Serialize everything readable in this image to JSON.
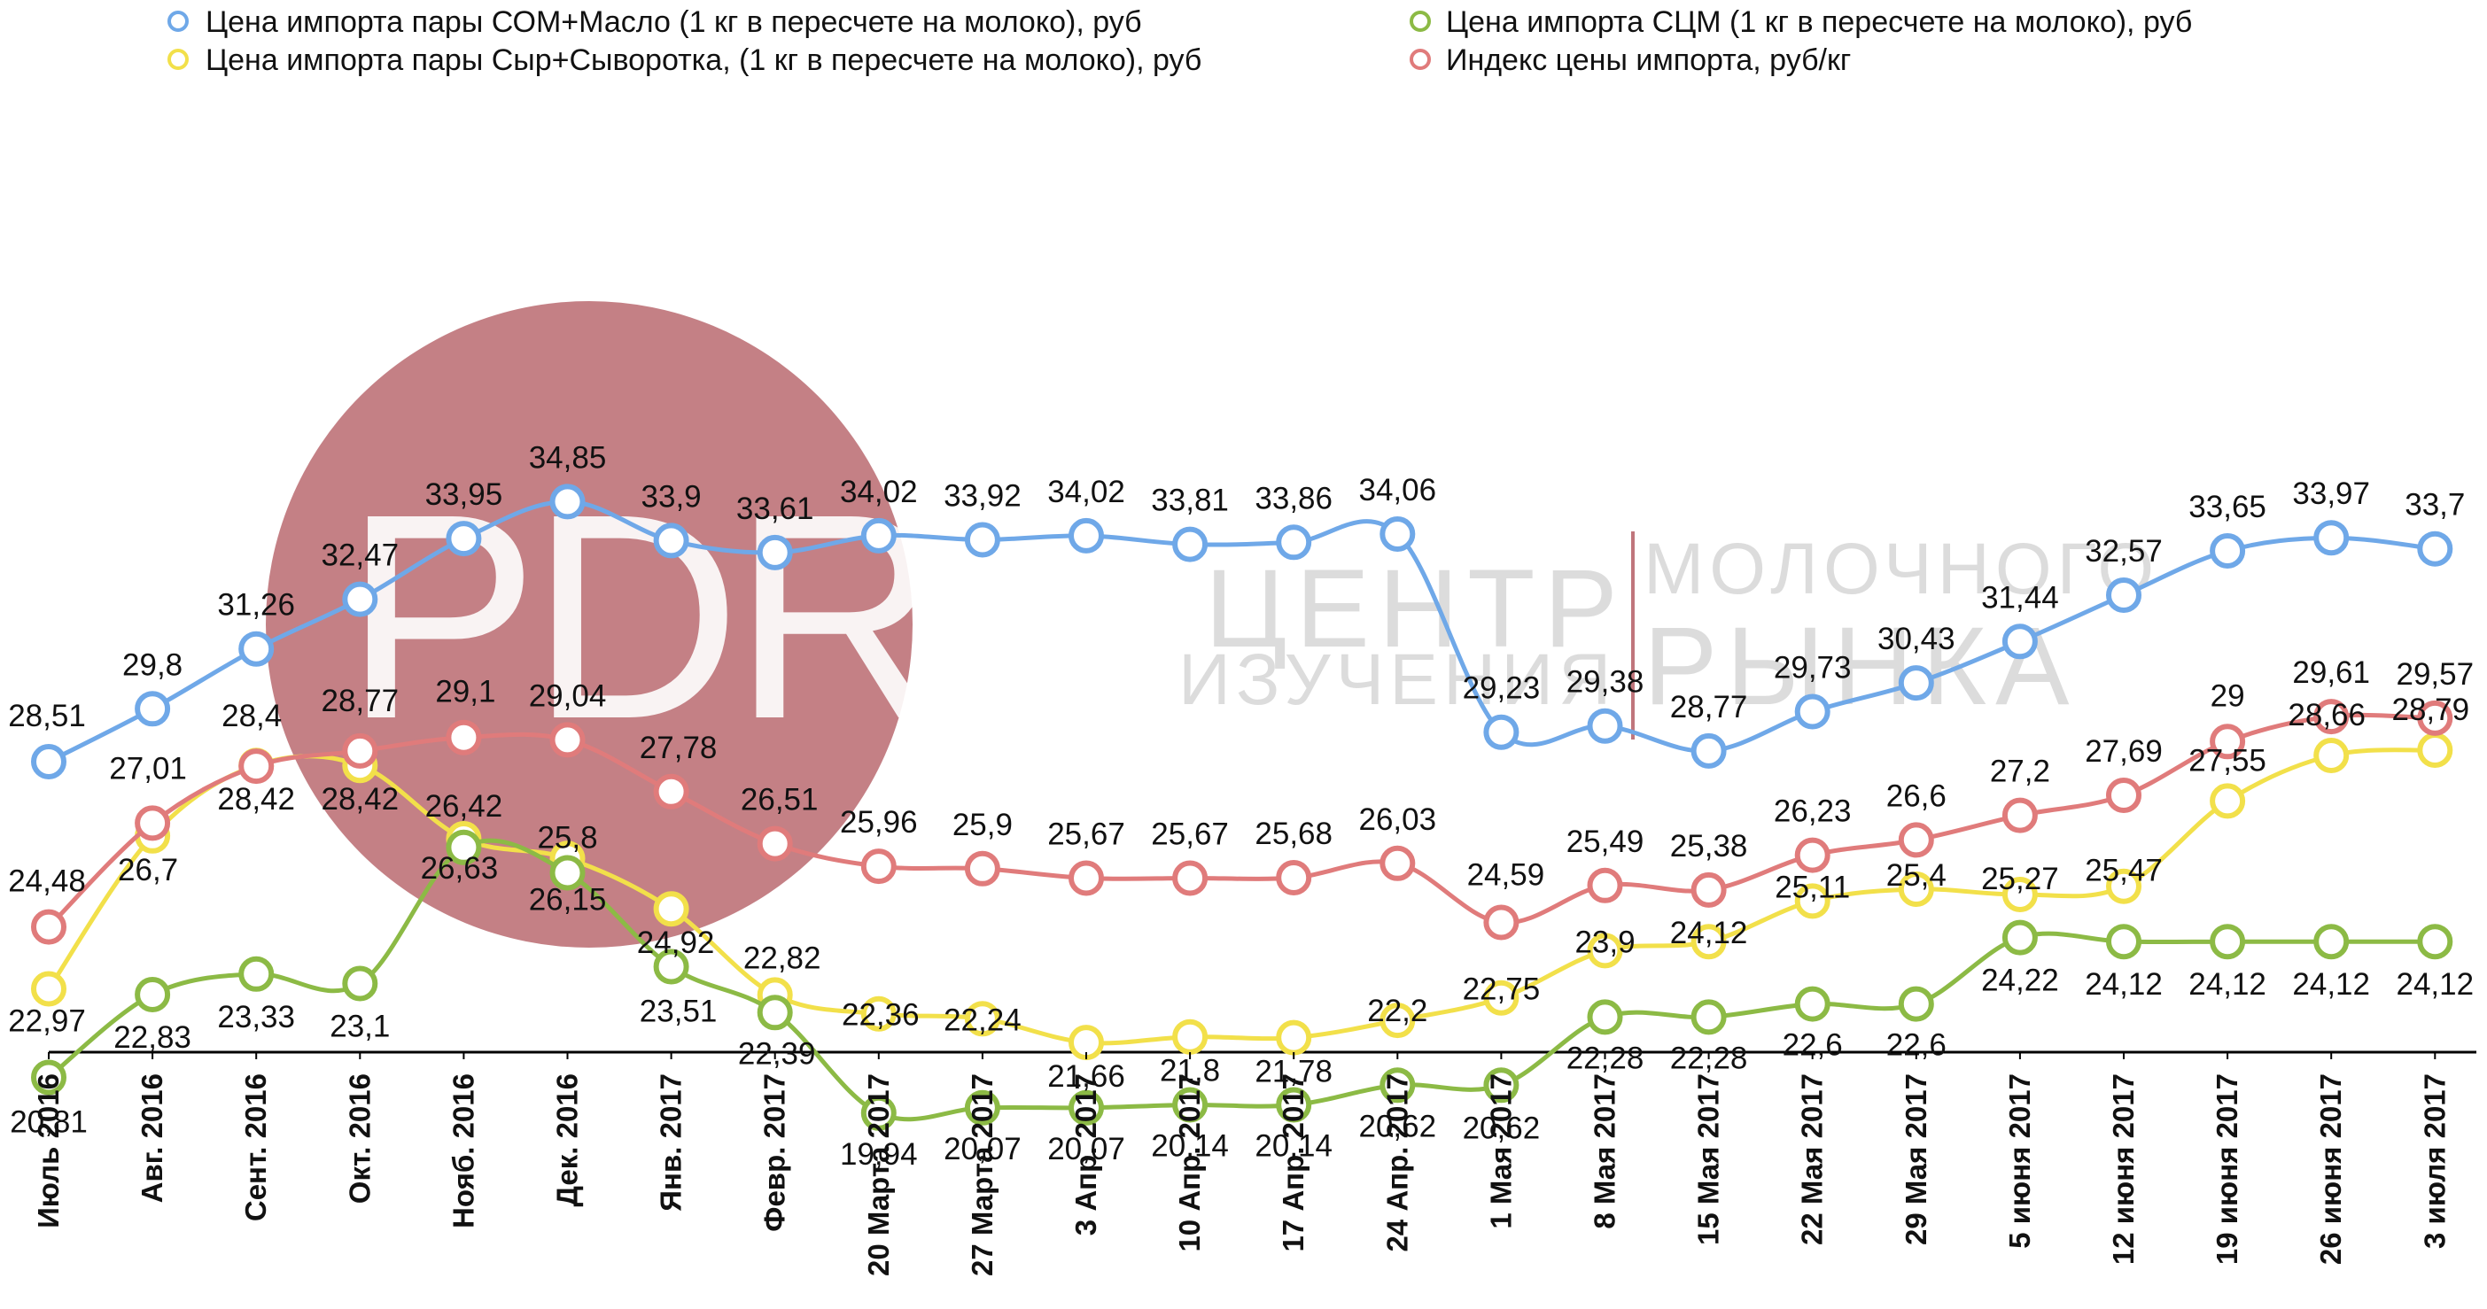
{
  "chart_data": {
    "type": "line",
    "categories": [
      "Июль 2016",
      "Авг. 2016",
      "Сент. 2016",
      "Окт. 2016",
      "Нояб. 2016",
      "Дек. 2016",
      "Янв. 2017",
      "Февр. 2017",
      "20 Марта 2017",
      "27 Марта 2017",
      "3 Апр. 2017",
      "10 Апр. 2017",
      "17 Апр. 2017",
      "24 Апр. 2017",
      "1 Мая 2017",
      "8 Мая 2017",
      "15 Мая 2017",
      "22 Мая 2017",
      "29 Мая 2017",
      "5 июня 2017",
      "12 июня 2017",
      "19 июня 2017",
      "26 июня 2017",
      "3 июля 2017"
    ],
    "series": [
      {
        "name": "Цена импорта пары СОМ+Масло (1 кг в пересчете на молоко), руб",
        "color": "#6fa8e8",
        "values": [
          28.51,
          29.8,
          31.26,
          32.47,
          33.95,
          34.85,
          33.9,
          33.61,
          34.02,
          33.92,
          34.02,
          33.81,
          33.86,
          34.06,
          29.23,
          29.38,
          28.77,
          29.73,
          30.43,
          31.44,
          32.57,
          33.65,
          33.97,
          33.7
        ],
        "labels": [
          "28,51",
          "29,8",
          "31,26",
          "32,47",
          "33,95",
          "34,85",
          "33,9",
          "33,61",
          "34,02",
          "33,92",
          "34,02",
          "33,81",
          "33,86",
          "34,06",
          "29,23",
          "29,38",
          "28,77",
          "29,73",
          "30,43",
          "31,44",
          "32,57",
          "33,65",
          "33,97",
          "33,7"
        ]
      },
      {
        "name": "Цена импорта пары Сыр+Сыворотка, (1 кг в пересчете на молоко), руб",
        "color": "#f2e04a",
        "values": [
          22.97,
          26.7,
          28.42,
          28.42,
          26.63,
          26.15,
          24.92,
          22.82,
          22.36,
          22.24,
          21.66,
          21.8,
          21.78,
          22.2,
          22.75,
          23.9,
          24.12,
          25.11,
          25.4,
          25.27,
          25.47,
          27.55,
          28.66,
          28.79
        ],
        "labels": [
          "22,97",
          "26,7",
          "28,42",
          "28,42",
          "26,63",
          "26,15",
          "24,92",
          "22,82",
          "22,36",
          "22,24",
          "21,66",
          "21,8",
          "21,78",
          "22,2",
          "22,75",
          "23,9",
          "24,12",
          "25,11",
          "25,4",
          "25,27",
          "25,47",
          "27,55",
          "28,66",
          "28,79"
        ]
      },
      {
        "name": "Цена импорта СЦМ (1 кг в пересчете на молоко), руб",
        "color": "#8cba45",
        "values": [
          20.81,
          22.83,
          23.33,
          23.1,
          26.42,
          25.8,
          23.51,
          22.39,
          19.94,
          20.07,
          20.07,
          20.14,
          20.14,
          20.62,
          20.62,
          22.28,
          22.28,
          22.6,
          22.6,
          24.22,
          24.12,
          24.12,
          24.12,
          24.12
        ],
        "labels": [
          "20,81",
          "22,83",
          "23,33",
          "23,1",
          "26,42",
          "25,8",
          "23,51",
          "22,39",
          "19,94",
          "20,07",
          "20,07",
          "20,14",
          "20,14",
          "20,62",
          "20,62",
          "22,28",
          "22,28",
          "22,6",
          "22,6",
          "24,22",
          "24,12",
          "24,12",
          "24,12",
          "24,12"
        ]
      },
      {
        "name": "Индекс цены импорта, руб/кг",
        "color": "#e07b7b",
        "values": [
          24.48,
          27.01,
          28.4,
          28.77,
          29.1,
          29.04,
          27.78,
          26.51,
          25.96,
          25.9,
          25.67,
          25.67,
          25.68,
          26.03,
          24.59,
          25.49,
          25.38,
          26.23,
          26.6,
          27.2,
          27.69,
          29.0,
          29.61,
          29.57
        ],
        "labels": [
          "24,48",
          "27,01",
          "28,4",
          "28,77",
          "29,1",
          "29,04",
          "27,78",
          "26,51",
          "25,96",
          "25,9",
          "25,67",
          "25,67",
          "25,68",
          "26,03",
          "24,59",
          "25,49",
          "25,38",
          "26,23",
          "26,6",
          "27,2",
          "27,69",
          "29",
          "29,61",
          "29,57"
        ]
      }
    ],
    "legend_position": "top",
    "grid": false,
    "watermark": {
      "logo": "PDRC",
      "line1": "ЦЕНТР",
      "line2": "ИЗУЧЕНИЯ",
      "line3": "МОЛОЧНОГО",
      "line4": "РЫНКА"
    }
  }
}
